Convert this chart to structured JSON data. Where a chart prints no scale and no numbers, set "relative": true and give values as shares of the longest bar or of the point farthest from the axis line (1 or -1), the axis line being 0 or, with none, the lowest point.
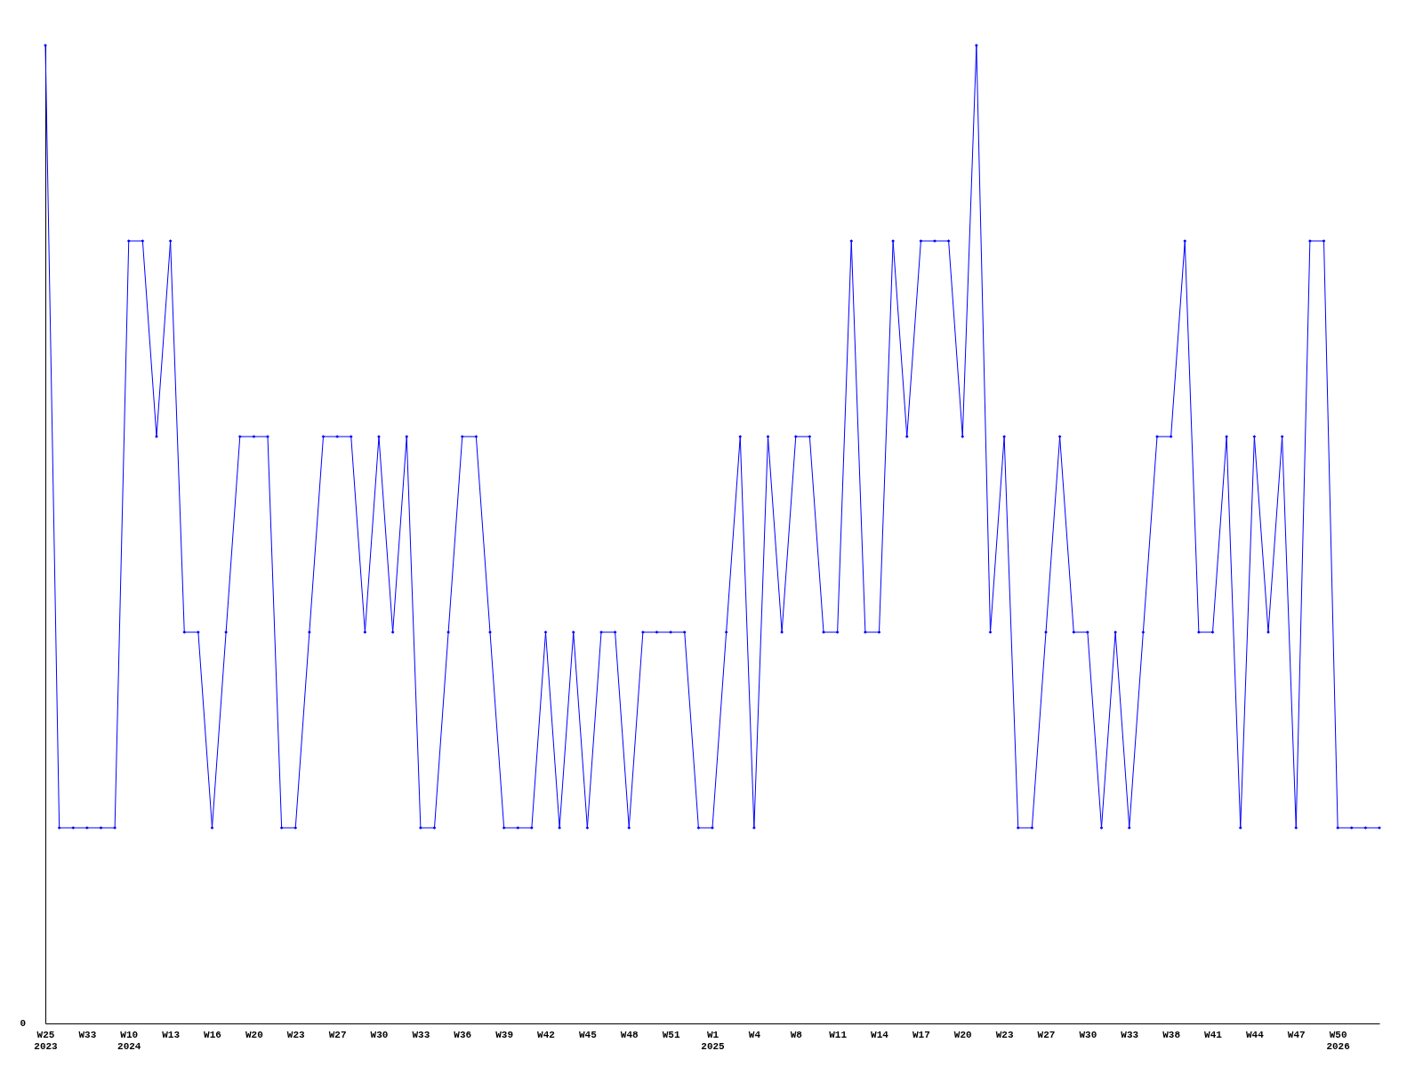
{
  "chart_data": {
    "type": "line",
    "relative": true,
    "marker": "diamond",
    "grid": false,
    "categories": [
      "W25\n2023",
      null,
      null,
      "W33",
      null,
      null,
      "W10\n2024",
      null,
      null,
      "W13",
      null,
      null,
      "W16",
      null,
      null,
      "W20",
      null,
      null,
      "W23",
      null,
      null,
      "W27",
      null,
      null,
      "W30",
      null,
      null,
      "W33",
      null,
      null,
      "W36",
      null,
      null,
      "W39",
      null,
      null,
      "W42",
      null,
      null,
      "W45",
      null,
      null,
      "W48",
      null,
      null,
      "W51",
      null,
      null,
      "W1\n2025",
      null,
      null,
      "W4",
      null,
      null,
      "W8",
      null,
      null,
      "W11",
      null,
      null,
      "W14",
      null,
      null,
      "W17",
      null,
      null,
      "W20",
      null,
      null,
      "W23",
      null,
      null,
      "W27",
      null,
      null,
      "W30",
      null,
      null,
      "W33",
      null,
      null,
      "W38",
      null,
      null,
      "W41",
      null,
      null,
      "W44",
      null,
      null,
      "W47",
      null,
      null,
      "W50\n2026",
      null,
      null,
      null
    ],
    "series": [
      {
        "color": "#0000ff",
        "values": [
          1,
          0.2,
          0.2,
          0.2,
          0.2,
          0.2,
          0.8,
          0.8,
          0.6,
          0.8,
          0.4,
          0.4,
          0.2,
          0.4,
          0.6,
          0.6,
          0.6,
          0.2,
          0.2,
          0.4,
          0.6,
          0.6,
          0.6,
          0.4,
          0.6,
          0.4,
          0.6,
          0.2,
          0.2,
          0.4,
          0.6,
          0.6,
          0.4,
          0.2,
          0.2,
          0.2,
          0.4,
          0.2,
          0.4,
          0.2,
          0.4,
          0.4,
          0.2,
          0.4,
          0.4,
          0.4,
          0.4,
          0.2,
          0.2,
          0.4,
          0.6,
          0.2,
          0.6,
          0.4,
          0.6,
          0.6,
          0.4,
          0.4,
          0.8,
          0.4,
          0.4,
          0.8,
          0.6,
          0.8,
          0.8,
          0.8,
          0.6,
          1,
          0.4,
          0.6,
          0.2,
          0.2,
          0.4,
          0.6,
          0.4,
          0.4,
          0.2,
          0.4,
          0.2,
          0.4,
          0.6,
          0.6,
          0.8,
          0.4,
          0.4,
          0.6,
          0.2,
          0.6,
          0.4,
          0.6,
          0.2,
          0.8,
          0.8,
          0.2,
          0.2,
          0.2,
          0.2
        ]
      }
    ],
    "annotations": [
      "0"
    ]
  }
}
